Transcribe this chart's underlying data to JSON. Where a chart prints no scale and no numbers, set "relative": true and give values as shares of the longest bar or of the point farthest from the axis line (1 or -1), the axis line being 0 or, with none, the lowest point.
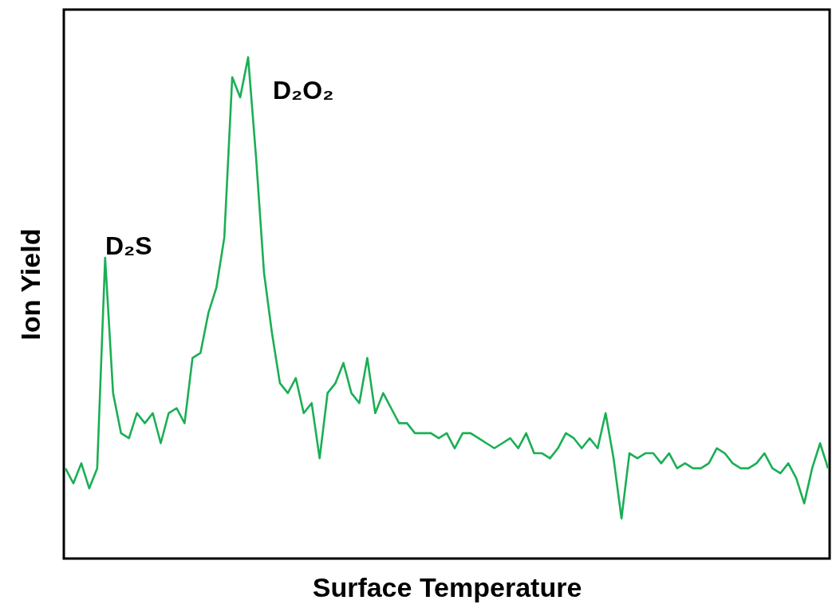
{
  "chart_data": {
    "type": "line",
    "relative": true,
    "xlabel": "Surface Temperature",
    "ylabel": "Ion Yield",
    "annotations": [
      "D₂S",
      "D₂O₂"
    ],
    "categories": [
      null,
      null,
      null,
      null,
      null,
      null,
      null,
      null,
      null,
      null,
      null,
      null,
      null,
      null,
      null,
      null,
      null,
      null,
      null,
      null,
      null,
      null,
      null,
      null,
      null,
      null,
      null,
      null,
      null,
      null,
      null,
      null,
      null,
      null,
      null,
      null,
      null,
      null,
      null,
      null,
      null,
      null,
      null,
      null,
      null,
      null,
      null,
      null,
      null,
      null,
      null,
      null,
      null,
      null,
      null,
      null,
      null,
      null,
      null,
      null,
      null,
      null,
      null,
      null,
      null,
      null,
      null,
      null,
      null,
      null,
      null,
      null,
      null,
      null,
      null,
      null,
      null,
      null,
      null,
      null,
      null,
      null,
      null,
      null,
      null,
      null,
      null,
      null,
      null,
      null,
      null,
      null,
      null,
      null,
      null,
      null,
      null
    ],
    "series": [
      {
        "color": "#1aaf54",
        "values": [
          0.18,
          0.15,
          0.19,
          0.14,
          0.18,
          0.6,
          0.33,
          0.25,
          0.24,
          0.29,
          0.27,
          0.29,
          0.23,
          0.29,
          0.3,
          0.27,
          0.4,
          0.41,
          0.49,
          0.54,
          0.64,
          0.96,
          0.92,
          1.0,
          0.8,
          0.57,
          0.45,
          0.35,
          0.33,
          0.36,
          0.29,
          0.31,
          0.2,
          0.33,
          0.35,
          0.39,
          0.33,
          0.31,
          0.4,
          0.29,
          0.33,
          0.3,
          0.27,
          0.27,
          0.25,
          0.25,
          0.25,
          0.24,
          0.25,
          0.22,
          0.25,
          0.25,
          0.24,
          0.23,
          0.22,
          0.23,
          0.24,
          0.22,
          0.25,
          0.21,
          0.21,
          0.2,
          0.22,
          0.25,
          0.24,
          0.22,
          0.24,
          0.22,
          0.29,
          0.2,
          0.08,
          0.21,
          0.2,
          0.21,
          0.21,
          0.19,
          0.21,
          0.18,
          0.19,
          0.18,
          0.18,
          0.19,
          0.22,
          0.21,
          0.19,
          0.18,
          0.18,
          0.19,
          0.21,
          0.18,
          0.17,
          0.19,
          0.16,
          0.11,
          0.18,
          0.23,
          0.18
        ]
      }
    ],
    "grid": false,
    "marker": "none",
    "line_style": "solid"
  }
}
